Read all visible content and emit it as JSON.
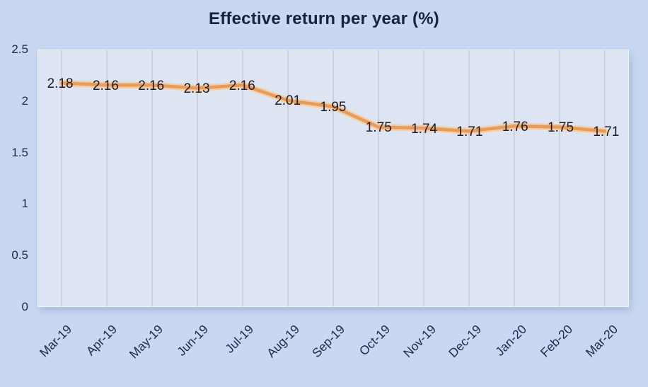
{
  "chart_data": {
    "type": "line",
    "title": "Effective return per year (%)",
    "categories": [
      "Mar-19",
      "Apr-19",
      "May-19",
      "Jun-19",
      "Jul-19",
      "Aug-19",
      "Sep-19",
      "Oct-19",
      "Nov-19",
      "Dec-19",
      "Jan-20",
      "Feb-20",
      "Mar-20"
    ],
    "values": [
      2.18,
      2.16,
      2.16,
      2.13,
      2.16,
      2.01,
      1.95,
      1.75,
      1.74,
      1.71,
      1.76,
      1.75,
      1.71
    ],
    "value_labels": [
      "2.18",
      "2.16",
      "2.16",
      "2.13",
      "2.16",
      "2.01",
      "1.95",
      "1.75",
      "1.74",
      "1.71",
      "1.76",
      "1.75",
      "1.71"
    ],
    "data_label_position": "center",
    "ylim": [
      0,
      2.5
    ],
    "yticks": [
      2.5,
      2,
      1.5,
      1,
      0.5,
      0
    ],
    "ytick_labels": [
      "2.5",
      "2",
      "1.5",
      "1",
      "0.5",
      "0"
    ],
    "xlabel": "",
    "ylabel": "",
    "grid": "vertical-only",
    "legend": "none",
    "colors": {
      "background": "#c8d8f2",
      "plot_background": "#dde4f2",
      "gridline": "#c6cbd7",
      "line": "#ED9B52",
      "line_glow": "#F5C593",
      "title_text": "#15233d",
      "axis_text": "#1b2a46",
      "data_label_text": "#1a1a22"
    }
  }
}
